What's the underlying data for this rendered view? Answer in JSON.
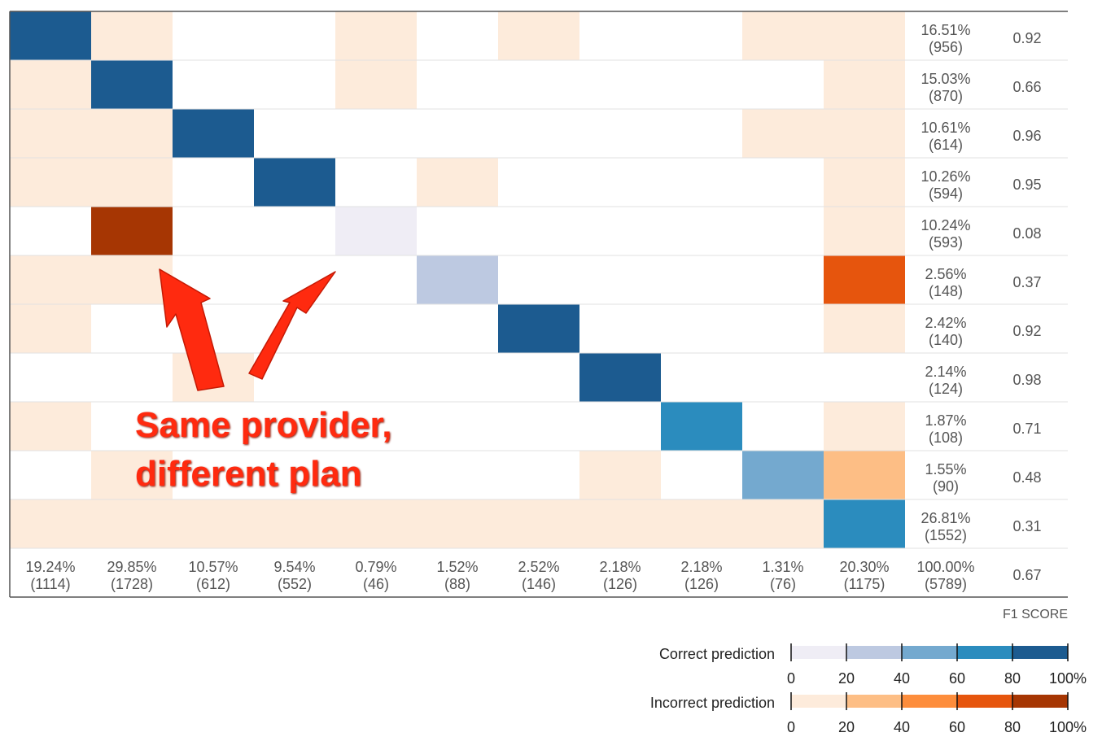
{
  "chart_data": {
    "type": "heatmap",
    "matrix_size": 11,
    "diagonal_class_levels": [
      5,
      5,
      5,
      5,
      1,
      2,
      5,
      5,
      4,
      3,
      4
    ],
    "offdiagonal_cells": [
      [
        0,
        1,
        1
      ],
      [
        0,
        4,
        1
      ],
      [
        0,
        6,
        1
      ],
      [
        0,
        9,
        1
      ],
      [
        0,
        10,
        1
      ],
      [
        1,
        0,
        1
      ],
      [
        1,
        4,
        1
      ],
      [
        1,
        10,
        1
      ],
      [
        2,
        0,
        1
      ],
      [
        2,
        1,
        1
      ],
      [
        2,
        9,
        1
      ],
      [
        2,
        10,
        1
      ],
      [
        3,
        0,
        1
      ],
      [
        3,
        1,
        1
      ],
      [
        3,
        5,
        1
      ],
      [
        3,
        10,
        1
      ],
      [
        4,
        1,
        5
      ],
      [
        4,
        10,
        1
      ],
      [
        5,
        0,
        1
      ],
      [
        5,
        1,
        1
      ],
      [
        5,
        10,
        4
      ],
      [
        6,
        0,
        1
      ],
      [
        6,
        10,
        1
      ],
      [
        7,
        2,
        1
      ],
      [
        8,
        0,
        1
      ],
      [
        8,
        10,
        1
      ],
      [
        9,
        1,
        1
      ],
      [
        9,
        7,
        1
      ],
      [
        9,
        10,
        2
      ],
      [
        10,
        0,
        1
      ],
      [
        10,
        1,
        1
      ],
      [
        10,
        2,
        1
      ],
      [
        10,
        3,
        1
      ],
      [
        10,
        4,
        1
      ],
      [
        10,
        5,
        1
      ],
      [
        10,
        6,
        1
      ],
      [
        10,
        7,
        1
      ],
      [
        10,
        8,
        1
      ],
      [
        10,
        9,
        1
      ]
    ],
    "row_totals": [
      {
        "pct": "16.51%",
        "count": "(956)"
      },
      {
        "pct": "15.03%",
        "count": "(870)"
      },
      {
        "pct": "10.61%",
        "count": "(614)"
      },
      {
        "pct": "10.26%",
        "count": "(594)"
      },
      {
        "pct": "10.24%",
        "count": "(593)"
      },
      {
        "pct": "2.56%",
        "count": "(148)"
      },
      {
        "pct": "2.42%",
        "count": "(140)"
      },
      {
        "pct": "2.14%",
        "count": "(124)"
      },
      {
        "pct": "1.87%",
        "count": "(108)"
      },
      {
        "pct": "1.55%",
        "count": "(90)"
      },
      {
        "pct": "26.81%",
        "count": "(1552)"
      }
    ],
    "f1_scores": [
      "0.92",
      "0.66",
      "0.96",
      "0.95",
      "0.08",
      "0.37",
      "0.92",
      "0.98",
      "0.71",
      "0.48",
      "0.31"
    ],
    "column_totals": [
      {
        "pct": "19.24%",
        "count": "(1114)"
      },
      {
        "pct": "29.85%",
        "count": "(1728)"
      },
      {
        "pct": "10.57%",
        "count": "(612)"
      },
      {
        "pct": "9.54%",
        "count": "(552)"
      },
      {
        "pct": "0.79%",
        "count": "(46)"
      },
      {
        "pct": "1.52%",
        "count": "(88)"
      },
      {
        "pct": "2.52%",
        "count": "(146)"
      },
      {
        "pct": "2.18%",
        "count": "(126)"
      },
      {
        "pct": "2.18%",
        "count": "(126)"
      },
      {
        "pct": "1.31%",
        "count": "(76)"
      },
      {
        "pct": "20.30%",
        "count": "(1175)"
      }
    ],
    "grand_total": {
      "pct": "100.00%",
      "count": "(5789)"
    },
    "overall_f1": "0.67",
    "f1_label": "F1 SCORE",
    "legend": {
      "correct_label": "Correct prediction",
      "incorrect_label": "Incorrect prediction",
      "ticks": [
        "0",
        "20",
        "40",
        "60",
        "80",
        "100%"
      ],
      "correct_colors": [
        "#efedf5",
        "#bdc9e1",
        "#74a9cf",
        "#2b8cbe",
        "#1c5b90"
      ],
      "incorrect_colors": [
        "#fdebdb",
        "#fdbe85",
        "#fd8d3c",
        "#e6550d",
        "#a63603"
      ]
    },
    "annotation": {
      "line1": "Same provider,",
      "line2": "different plan"
    }
  }
}
